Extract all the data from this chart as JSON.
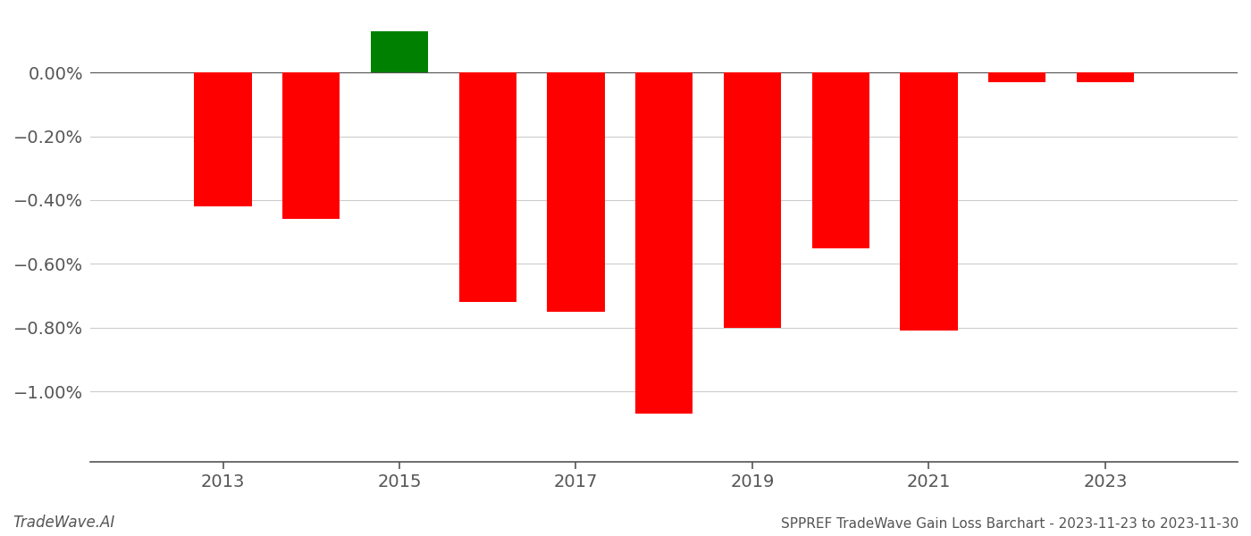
{
  "years": [
    2013,
    2014,
    2015,
    2016,
    2017,
    2018,
    2019,
    2020,
    2021,
    2022,
    2023
  ],
  "values": [
    -0.0042,
    -0.0046,
    0.0013,
    -0.0072,
    -0.0075,
    -0.01068,
    -0.008,
    -0.0055,
    -0.0081,
    -0.0003,
    -0.0003
  ],
  "colors": [
    "#ff0000",
    "#ff0000",
    "#008000",
    "#ff0000",
    "#ff0000",
    "#ff0000",
    "#ff0000",
    "#ff0000",
    "#ff0000",
    "#ff0000",
    "#ff0000"
  ],
  "title": "SPPREF TradeWave Gain Loss Barchart - 2023-11-23 to 2023-11-30",
  "watermark": "TradeWave.AI",
  "ylim": [
    -0.0122,
    0.00185
  ],
  "yticks": [
    0.0,
    -0.002,
    -0.004,
    -0.006,
    -0.008,
    -0.01
  ],
  "background_color": "#ffffff",
  "grid_color": "#cccccc",
  "axis_color": "#555555",
  "bar_width": 0.65,
  "xlim": [
    2011.5,
    2024.5
  ]
}
